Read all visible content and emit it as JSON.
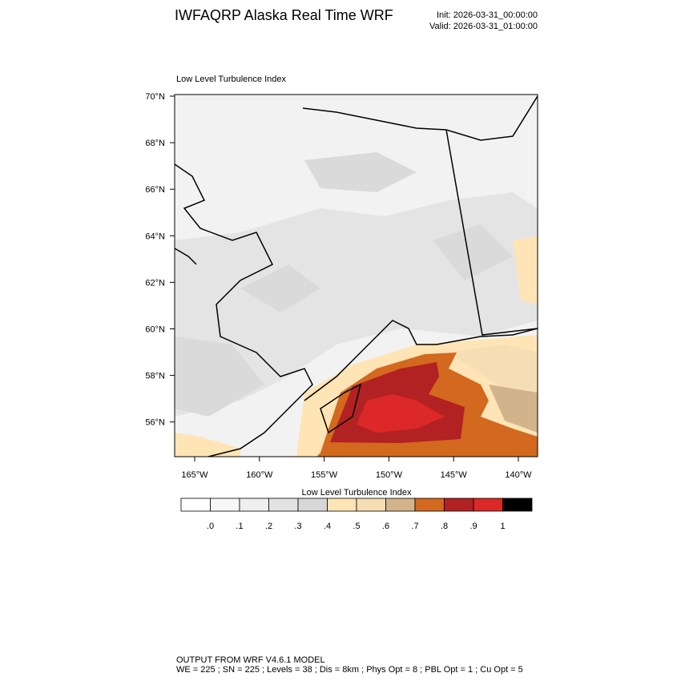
{
  "header": {
    "title": "IWFAQRP Alaska Real Time WRF",
    "init": "Init: 2026-03-31_00:00:00",
    "valid": "Valid: 2026-03-31_01:00:00"
  },
  "map": {
    "title": "Low Level Turbulence Index",
    "lat_labels": [
      "70°N",
      "68°N",
      "66°N",
      "64°N",
      "62°N",
      "60°N",
      "58°N",
      "56°N"
    ],
    "lon_labels": [
      "165°W",
      "160°W",
      "155°W",
      "150°W",
      "145°W",
      "140°W"
    ]
  },
  "colorbar": {
    "title": "Low Level Turbulence Index",
    "labels": [
      ".0",
      ".1",
      ".2",
      ".3",
      ".4",
      ".5",
      ".6",
      ".7",
      ".8",
      ".9",
      "1"
    ],
    "colors": [
      "#ffffff",
      "#f7f7f7",
      "#efefef",
      "#e3e3e3",
      "#d7d7d7",
      "#ffe4b5",
      "#f5deb3",
      "#d2b48c",
      "#d2691e",
      "#b22222",
      "#dc2828",
      "#000000"
    ]
  },
  "footer": {
    "line1": "OUTPUT FROM WRF V4.6.1 MODEL",
    "line2": "WE = 225 ; SN = 225 ; Levels = 38 ; Dis = 8km ; Phys Opt = 8 ; PBL Opt = 1 ; Cu Opt = 5"
  }
}
